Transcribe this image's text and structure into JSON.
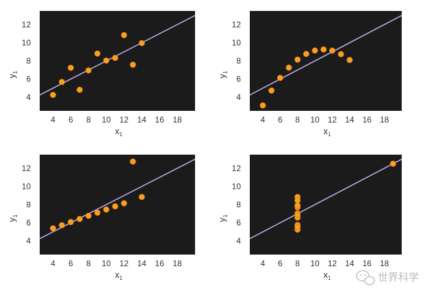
{
  "watermark": {
    "text": "世界科学",
    "icon": "wechat-icon"
  },
  "colors": {
    "plot_bg": "#1b1b1b",
    "point": "#f7a022",
    "point_edge": "#d26e0a",
    "fit_line": "#b7a9e0"
  },
  "chart_data": [
    {
      "type": "scatter",
      "xlabel": "x",
      "xlabel_sub": "1",
      "ylabel": "y",
      "ylabel_sub": "1",
      "xlim": [
        2.5,
        20
      ],
      "ylim": [
        2.5,
        13.5
      ],
      "xticks": [
        4,
        6,
        8,
        10,
        12,
        14,
        16,
        18
      ],
      "yticks": [
        4,
        6,
        8,
        10,
        12
      ],
      "grid": false,
      "fit_line": {
        "slope": 0.5,
        "intercept": 3.0
      },
      "points": [
        {
          "x": 10,
          "y": 8.04
        },
        {
          "x": 8,
          "y": 6.95
        },
        {
          "x": 13,
          "y": 7.58
        },
        {
          "x": 9,
          "y": 8.81
        },
        {
          "x": 11,
          "y": 8.33
        },
        {
          "x": 14,
          "y": 9.96
        },
        {
          "x": 6,
          "y": 7.24
        },
        {
          "x": 4,
          "y": 4.26
        },
        {
          "x": 12,
          "y": 10.84
        },
        {
          "x": 7,
          "y": 4.82
        },
        {
          "x": 5,
          "y": 5.68
        }
      ]
    },
    {
      "type": "scatter",
      "xlabel": "x",
      "xlabel_sub": "1",
      "ylabel": "y",
      "ylabel_sub": "1",
      "xlim": [
        2.5,
        20
      ],
      "ylim": [
        2.5,
        13.5
      ],
      "xticks": [
        4,
        6,
        8,
        10,
        12,
        14,
        16,
        18
      ],
      "yticks": [
        4,
        6,
        8,
        10,
        12
      ],
      "grid": false,
      "fit_line": {
        "slope": 0.5,
        "intercept": 3.0
      },
      "points": [
        {
          "x": 10,
          "y": 9.14
        },
        {
          "x": 8,
          "y": 8.14
        },
        {
          "x": 13,
          "y": 8.74
        },
        {
          "x": 9,
          "y": 8.77
        },
        {
          "x": 11,
          "y": 9.26
        },
        {
          "x": 14,
          "y": 8.1
        },
        {
          "x": 6,
          "y": 6.13
        },
        {
          "x": 4,
          "y": 3.1
        },
        {
          "x": 12,
          "y": 9.13
        },
        {
          "x": 7,
          "y": 7.26
        },
        {
          "x": 5,
          "y": 4.74
        }
      ]
    },
    {
      "type": "scatter",
      "xlabel": "x",
      "xlabel_sub": "1",
      "ylabel": "y",
      "ylabel_sub": "1",
      "xlim": [
        2.5,
        20
      ],
      "ylim": [
        2.5,
        13.5
      ],
      "xticks": [
        4,
        6,
        8,
        10,
        12,
        14,
        16,
        18
      ],
      "yticks": [
        4,
        6,
        8,
        10,
        12
      ],
      "grid": false,
      "fit_line": {
        "slope": 0.5,
        "intercept": 3.0
      },
      "points": [
        {
          "x": 10,
          "y": 7.46
        },
        {
          "x": 8,
          "y": 6.77
        },
        {
          "x": 13,
          "y": 12.74
        },
        {
          "x": 9,
          "y": 7.11
        },
        {
          "x": 11,
          "y": 7.81
        },
        {
          "x": 14,
          "y": 8.84
        },
        {
          "x": 6,
          "y": 6.08
        },
        {
          "x": 4,
          "y": 5.39
        },
        {
          "x": 12,
          "y": 8.15
        },
        {
          "x": 7,
          "y": 6.42
        },
        {
          "x": 5,
          "y": 5.73
        }
      ]
    },
    {
      "type": "scatter",
      "xlabel": "x",
      "xlabel_sub": "1",
      "ylabel": "y",
      "ylabel_sub": "1",
      "xlim": [
        2.5,
        20
      ],
      "ylim": [
        2.5,
        13.5
      ],
      "xticks": [
        4,
        6,
        8,
        10,
        12,
        14,
        16,
        18
      ],
      "yticks": [
        4,
        6,
        8,
        10,
        12
      ],
      "grid": false,
      "fit_line": {
        "slope": 0.5,
        "intercept": 3.0
      },
      "points": [
        {
          "x": 8,
          "y": 6.58
        },
        {
          "x": 8,
          "y": 5.76
        },
        {
          "x": 8,
          "y": 7.71
        },
        {
          "x": 8,
          "y": 8.84
        },
        {
          "x": 8,
          "y": 8.47
        },
        {
          "x": 8,
          "y": 7.04
        },
        {
          "x": 8,
          "y": 5.25
        },
        {
          "x": 19,
          "y": 12.5
        },
        {
          "x": 8,
          "y": 5.56
        },
        {
          "x": 8,
          "y": 7.91
        },
        {
          "x": 8,
          "y": 6.89
        }
      ]
    }
  ]
}
